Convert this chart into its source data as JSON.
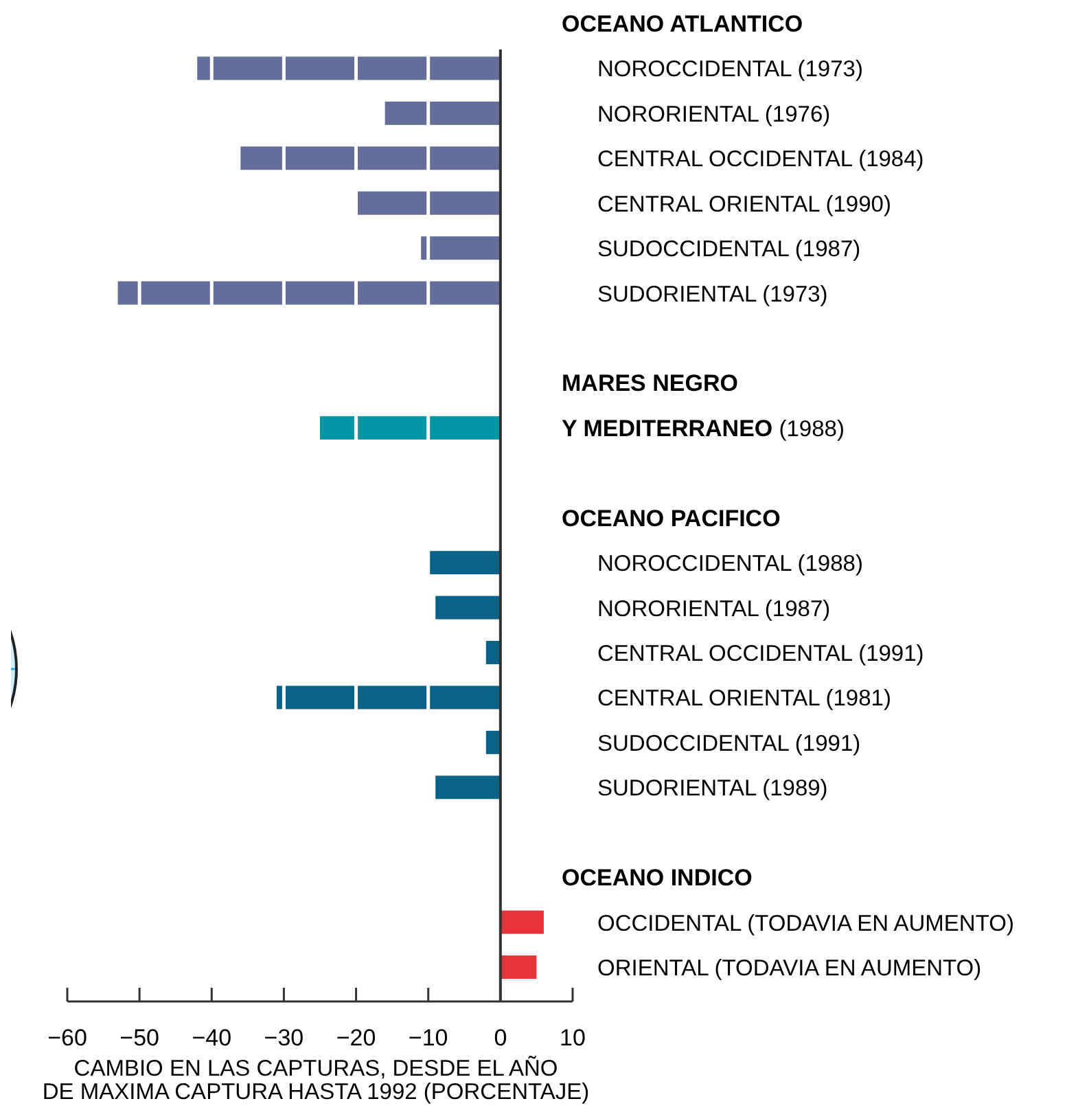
{
  "chart_data": {
    "type": "bar",
    "orientation": "horizontal",
    "categories": [
      null,
      "NOROCCIDENTAL (1973)",
      "NORORIENTAL (1976)",
      "CENTRAL OCCIDENTAL (1984)",
      "CENTRAL ORIENTAL (1990)",
      "SUDOCCIDENTAL (1987)",
      "SUDORIENTAL (1973)",
      null,
      null,
      null,
      null,
      null,
      "NOROCCIDENTAL (1988)",
      "NORORIENTAL (1987)",
      "CENTRAL OCCIDENTAL (1991)",
      "CENTRAL ORIENTAL (1981)",
      "SUDOCCIDENTAL (1991)",
      "SUDORIENTAL (1989)",
      null,
      null,
      "OCCIDENTAL (TODAVIA EN AUMENTO)",
      "ORIENTAL (TODAVIA EN AUMENTO)"
    ],
    "values": [
      null,
      -42,
      -16,
      -36,
      -20,
      -11,
      -53,
      null,
      null,
      -25,
      null,
      null,
      -10,
      -9,
      -2,
      -31,
      -2,
      -9,
      null,
      null,
      6,
      5
    ],
    "colors": [
      null,
      "#636e9a",
      "#636e9a",
      "#636e9a",
      "#636e9a",
      "#636e9a",
      "#636e9a",
      null,
      null,
      "#0096a4",
      null,
      null,
      "#0b6488",
      "#0b6488",
      "#0b6488",
      "#0b6488",
      "#0b6488",
      "#0b6488",
      null,
      null,
      "#e8333a",
      "#e8333a"
    ],
    "xlim": [
      -60,
      10
    ],
    "xticks": [
      {
        "value": -60,
        "label": "−60"
      },
      {
        "value": -50,
        "label": "−50"
      },
      {
        "value": -40,
        "label": "−40"
      },
      {
        "value": -30,
        "label": "−30"
      },
      {
        "value": -20,
        "label": "−20"
      },
      {
        "value": -10,
        "label": "−10"
      },
      0,
      10
    ],
    "xlabel": "CAMBIO EN LAS CAPTURAS, DESDE EL AÑO\nDE MAXIMA CAPTURA HASTA  1992 (PORCENTAJE)",
    "grid": "x",
    "ref_lines": [
      {
        "axis": "x",
        "value": 0
      }
    ],
    "annotations": [
      "OCEANO ATLANTICO",
      "MARES NEGRO Y MEDITERRANEO (1988)",
      "OCEANO PACIFICO",
      "OCEANO INDICO"
    ]
  }
}
